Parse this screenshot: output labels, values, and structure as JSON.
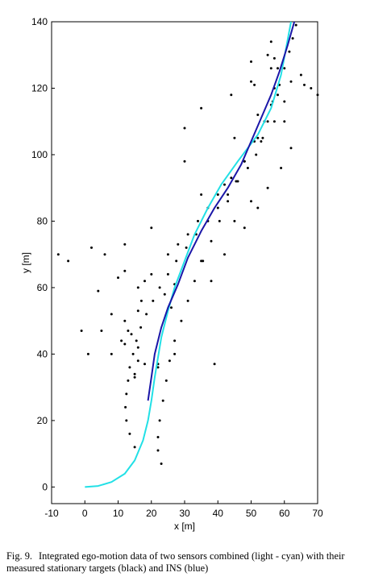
{
  "caption": {
    "figure_number": "Fig. 9.",
    "text": "Integrated ego-motion data of two sensors combined (light - cyan) with their measured stationary targets (black) and INS (blue)"
  },
  "chart_data": {
    "type": "scatter",
    "title": "",
    "xlabel": "x [m]",
    "ylabel": "y [m]",
    "xlim": [
      -10,
      70
    ],
    "ylim": [
      -5,
      140
    ],
    "xticks": [
      -10,
      0,
      10,
      20,
      30,
      40,
      50,
      60,
      70
    ],
    "yticks": [
      0,
      20,
      40,
      60,
      80,
      100,
      120,
      140
    ],
    "grid": false,
    "colors": {
      "combined": "#22e0e6",
      "ins": "#1a16a8",
      "targets": "#000000"
    },
    "series": [
      {
        "kind": "line",
        "color": "#22e0e6",
        "x": [
          0,
          4,
          8,
          12,
          15,
          17.5,
          19,
          20,
          21,
          23,
          25,
          27,
          30,
          33,
          37,
          41,
          46,
          52,
          56,
          59,
          62
        ],
        "y": [
          0,
          0.3,
          1.5,
          4,
          8,
          14,
          20,
          26,
          33,
          45,
          53,
          60,
          68,
          76,
          84,
          91,
          98,
          106,
          114,
          124,
          140
        ]
      },
      {
        "kind": "line",
        "color": "#1a16a8",
        "x": [
          19,
          20,
          21,
          23,
          25,
          28,
          31,
          35,
          39,
          43,
          47,
          50,
          53,
          56,
          58.5,
          61,
          63
        ],
        "y": [
          26,
          33,
          40,
          48,
          54,
          61,
          69,
          77,
          84,
          90,
          97,
          104,
          111,
          118,
          125,
          133,
          140
        ]
      },
      {
        "kind": "points",
        "color": "#000000",
        "x": [
          15.0,
          13.5,
          12.5,
          12.2,
          12.5,
          13.0,
          13.5,
          14.5,
          15.5,
          16.8,
          18.5,
          20.5,
          22.5,
          25.0,
          27.5,
          30.5,
          33.5,
          37.0,
          40.0,
          43.0,
          46.0,
          49.0,
          51.5,
          53.5,
          55.0,
          56.0,
          57.0,
          58.0,
          23.0,
          22.0,
          22.0,
          22.5,
          23.5,
          24.5,
          25.5,
          27.0,
          29.0,
          31.0,
          33.0,
          35.5,
          38.0,
          40.5,
          43.0,
          45.5,
          48.0,
          51.0,
          54.0,
          56.5,
          58.5,
          60.0,
          61.5,
          62.5,
          63.5,
          18.0,
          20.0,
          25.0,
          28.0,
          31.0,
          34.0,
          37.0,
          40.0,
          44.0,
          48.0,
          53.0,
          57.0,
          60.0,
          62.0,
          12.0,
          14.0,
          16.0,
          24.0,
          27.0,
          26.0,
          35.0,
          45.0,
          50.0,
          38.0,
          42.0,
          48.0,
          52.0,
          55.0,
          59.0,
          62.0,
          58.0,
          52.0,
          50.0,
          55.0,
          13.0,
          12.0,
          16.0,
          17.0,
          10.0,
          12.0,
          15.0,
          5.0,
          8.0,
          4.0,
          1.0,
          -1.0,
          -5.0,
          -8.0,
          2.0,
          6.0,
          12.0,
          20.0,
          35.0,
          42.0,
          39.0,
          27.0,
          22.0,
          8.0,
          11.0,
          16.0,
          18.0,
          22.0,
          15.0,
          16.0,
          66.0,
          70.0,
          68.0,
          65.0,
          60.0,
          52.0,
          45.0,
          30.0,
          30.0,
          35.0,
          44.0,
          51.0,
          56.0,
          57.0,
          50.0,
          56.0
        ],
        "y": [
          12.0,
          16.0,
          20.0,
          24.0,
          28.0,
          32.0,
          36.0,
          40.0,
          44.0,
          48.0,
          52.0,
          56.0,
          60.0,
          64.0,
          68.0,
          72.0,
          76.0,
          80.0,
          84.0,
          88.0,
          92.0,
          96.0,
          100.0,
          105.0,
          110.0,
          115.0,
          120.0,
          126.0,
          7.0,
          11.0,
          15.0,
          20.0,
          26.0,
          32.0,
          38.0,
          44.0,
          50.0,
          56.0,
          62.0,
          68.0,
          74.0,
          80.0,
          86.0,
          92.0,
          98.0,
          104.0,
          110.0,
          116.0,
          121.0,
          126.0,
          131.0,
          135.0,
          139.0,
          62.0,
          64.0,
          70.0,
          73.0,
          76.0,
          80.0,
          84.0,
          88.0,
          93.0,
          98.0,
          104.0,
          110.0,
          116.0,
          122.0,
          50.0,
          46.0,
          42.0,
          58.0,
          61.0,
          54.0,
          68.0,
          80.0,
          86.0,
          62.0,
          70.0,
          78.0,
          84.0,
          90.0,
          96.0,
          102.0,
          118.0,
          112.0,
          122.0,
          130.0,
          47.0,
          43.0,
          53.0,
          56.0,
          63.0,
          65.0,
          33.0,
          47.0,
          52.0,
          59.0,
          40.0,
          47.0,
          68.0,
          70.0,
          72.0,
          70.0,
          73.0,
          78.0,
          88.0,
          91.0,
          37.0,
          40.0,
          36.0,
          40.0,
          44.0,
          38.0,
          37.0,
          37.0,
          34.0,
          60.0,
          121.0,
          118.0,
          120.0,
          124.0,
          110.0,
          105.0,
          105.0,
          98.0,
          108.0,
          114.0,
          118.0,
          121.0,
          126.0,
          129.0,
          128.0,
          134.0
        ]
      }
    ]
  }
}
